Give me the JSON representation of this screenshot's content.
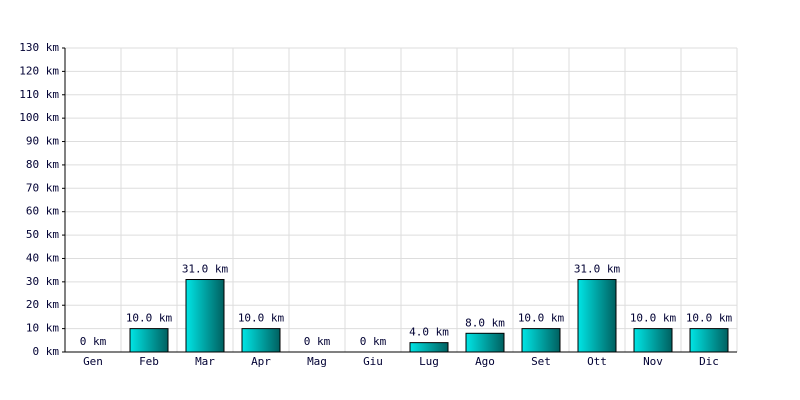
{
  "chart_data": {
    "type": "bar",
    "categories": [
      "Gen",
      "Feb",
      "Mar",
      "Apr",
      "Mag",
      "Giu",
      "Lug",
      "Ago",
      "Set",
      "Ott",
      "Nov",
      "Dic"
    ],
    "values": [
      0,
      10,
      31,
      10,
      0,
      0,
      4,
      8,
      10,
      31,
      10,
      10
    ],
    "value_labels": [
      "0 km",
      "10.0 km",
      "31.0 km",
      "10.0 km",
      "0 km",
      "0 km",
      "4.0 km",
      "8.0 km",
      "10.0 km",
      "31.0 km",
      "10.0 km",
      "10.0 km"
    ],
    "color": "#00e5e5",
    "ylim": [
      0,
      130
    ],
    "yticks": [
      {
        "value": 0,
        "label": "0 km"
      },
      {
        "value": 10,
        "label": "10 km"
      },
      {
        "value": 20,
        "label": "20 km"
      },
      {
        "value": 30,
        "label": "30 km"
      },
      {
        "value": 40,
        "label": "40 km"
      },
      {
        "value": 50,
        "label": "50 km"
      },
      {
        "value": 60,
        "label": "60 km"
      },
      {
        "value": 70,
        "label": "70 km"
      },
      {
        "value": 80,
        "label": "80 km"
      },
      {
        "value": 90,
        "label": "90 km"
      },
      {
        "value": 100,
        "label": "100 km"
      },
      {
        "value": 110,
        "label": "110 km"
      },
      {
        "value": 120,
        "label": "120 km"
      },
      {
        "value": 130,
        "label": "130 km"
      }
    ],
    "grid": true
  }
}
